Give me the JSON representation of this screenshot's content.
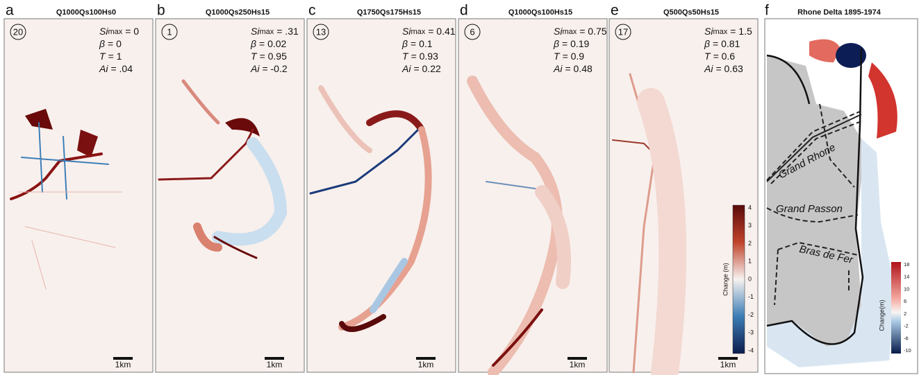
{
  "panels": [
    {
      "letter": "a",
      "title": "Q1000Qs100Hs0",
      "run": "20",
      "values": [
        "= 0",
        "= 0",
        "= 1",
        "= .04"
      ]
    },
    {
      "letter": "b",
      "title": "Q1000Qs250Hs15",
      "run": "1",
      "values": [
        "= .31",
        "= 0.02",
        "= 0.95",
        "= -0.2"
      ]
    },
    {
      "letter": "c",
      "title": "Q1750Qs175Hs15",
      "run": "13",
      "values": [
        "= 0.41",
        "= 0.1",
        "= 0.93",
        "= 0.22"
      ]
    },
    {
      "letter": "d",
      "title": "Q1000Qs100Hs15",
      "run": "6",
      "values": [
        "= 0.75",
        "= 0.19",
        "= 0.9",
        "= 0.48"
      ]
    },
    {
      "letter": "e",
      "title": "Q500Qs50Hs15",
      "run": "17",
      "values": [
        "= 1.5",
        "= 0.81",
        "= 0.6",
        "= 0.63"
      ]
    }
  ],
  "parameter_symbols": [
    "Si",
    "β",
    "T",
    "Ai"
  ],
  "parameter_subscript": "max",
  "scale_bar": "1km",
  "colorbar": {
    "label": "Change (m)",
    "ticks": [
      "4",
      "3",
      "2",
      "1",
      "0",
      "-1",
      "-2",
      "-3",
      "-4"
    ]
  },
  "delta_panel": {
    "letter": "f",
    "title": "Rhone Delta 1895-1974",
    "labels": [
      "Grand Rhone",
      "Grand Passon",
      "Bras de Fer"
    ],
    "colorbar": {
      "label": "Change(m)",
      "ticks": [
        "18",
        "14",
        "10",
        "6",
        "2",
        "-2",
        "-6",
        "-10"
      ]
    }
  }
}
